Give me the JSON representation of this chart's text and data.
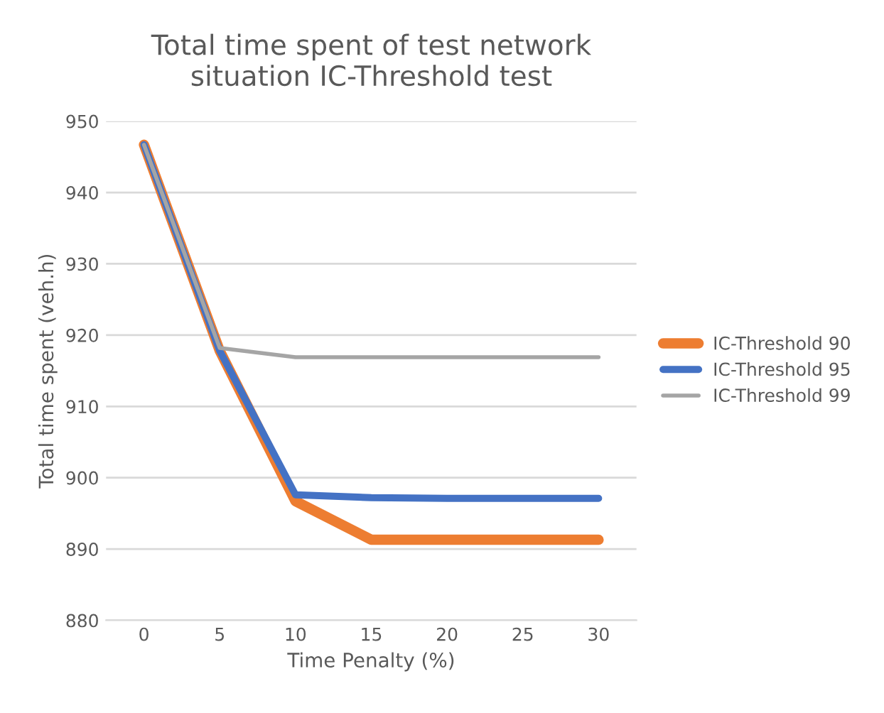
{
  "chart_data": {
    "type": "line",
    "title": "Total time spent of test network\nsituation IC-Threshold test",
    "xlabel": "Time Penalty (%)",
    "ylabel": "Total time spent (veh.h)",
    "categories": [
      "0",
      "5",
      "10",
      "15",
      "20",
      "25",
      "30"
    ],
    "series": [
      {
        "name": "IC-Threshold 90",
        "color": "#ed7d31",
        "values": [
          946.7,
          917.8,
          896.7,
          891.3,
          891.3,
          891.3,
          891.3
        ]
      },
      {
        "name": "IC-Threshold 95",
        "color": "#4472c4",
        "values": [
          946.7,
          917.8,
          897.6,
          897.2,
          897.1,
          897.1,
          897.1
        ]
      },
      {
        "name": "IC-Threshold 99",
        "color": "#a5a5a5",
        "values": [
          946.7,
          918.2,
          916.9,
          916.9,
          916.9,
          916.9,
          916.9
        ]
      }
    ],
    "ylim": [
      880,
      950
    ],
    "yticks": [
      880,
      890,
      900,
      910,
      920,
      930,
      940,
      950
    ],
    "grid": "y",
    "legend": "right",
    "marker": "none",
    "line_style": "solid"
  }
}
